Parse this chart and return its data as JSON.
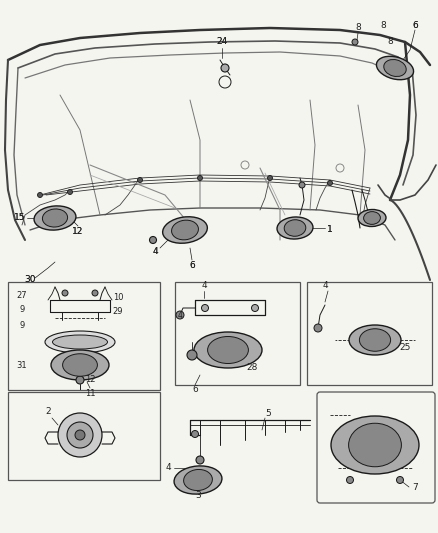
{
  "bg_color": "#f5f5f0",
  "line_color": "#1a1a1a",
  "fig_width": 4.38,
  "fig_height": 5.33,
  "dpi": 100,
  "gray_light": "#bbbbbb",
  "gray_mid": "#888888",
  "gray_dark": "#444444"
}
